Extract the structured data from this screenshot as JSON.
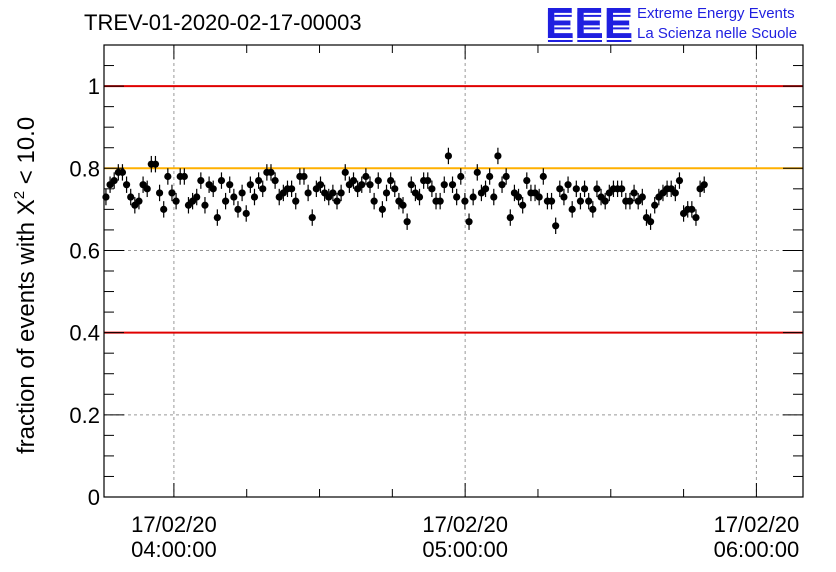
{
  "title": "TREV-01-2020-02-17-00003",
  "logo": {
    "mark": "EEE",
    "line1": "Extreme Energy Events",
    "line2": "La Scienza nelle Scuole",
    "color": "#1f1fe0"
  },
  "colors": {
    "reference_red": "#e00000",
    "reference_orange": "#ffb000",
    "points": "#000000",
    "grid": "#999999"
  },
  "chart_data": {
    "type": "scatter",
    "title": "TREV-01-2020-02-17-00003",
    "ylabel_prefix": "fraction of events with ",
    "ylabel_symbol": "X",
    "ylabel_superscript": "2",
    "ylabel_suffix": " < 10.0",
    "xlabel": "",
    "ylim": [
      0,
      1.1
    ],
    "xlim": [
      "2020-02-17 03:45:36",
      "2020-02-17 06:09:36"
    ],
    "y_ticks": [
      "0",
      "0.2",
      "0.4",
      "0.6",
      "0.8",
      "1"
    ],
    "y_tick_values": [
      0,
      0.2,
      0.4,
      0.6,
      0.8,
      1.0
    ],
    "x_ticks": [
      {
        "time": "2020-02-17 04:00:00",
        "date": "17/02/20",
        "clock": "04:00:00"
      },
      {
        "time": "2020-02-17 05:00:00",
        "date": "17/02/20",
        "clock": "05:00:00"
      },
      {
        "time": "2020-02-17 06:00:00",
        "date": "17/02/20",
        "clock": "06:00:00"
      }
    ],
    "reference_lines": [
      {
        "y": 1.0,
        "color": "#e00000"
      },
      {
        "y": 0.8,
        "color": "#ffb000"
      },
      {
        "y": 0.4,
        "color": "#e00000"
      }
    ],
    "grid": true,
    "x_start": "2020-02-17 03:46:00",
    "x_step_minutes": 0.85,
    "error": 0.02,
    "values": [
      0.73,
      0.76,
      0.77,
      0.79,
      0.79,
      0.76,
      0.73,
      0.71,
      0.72,
      0.76,
      0.75,
      0.81,
      0.81,
      0.74,
      0.7,
      0.78,
      0.74,
      0.72,
      0.78,
      0.78,
      0.71,
      0.72,
      0.73,
      0.77,
      0.71,
      0.76,
      0.75,
      0.68,
      0.77,
      0.72,
      0.76,
      0.73,
      0.7,
      0.74,
      0.69,
      0.76,
      0.73,
      0.77,
      0.75,
      0.79,
      0.79,
      0.77,
      0.73,
      0.74,
      0.75,
      0.75,
      0.72,
      0.78,
      0.78,
      0.74,
      0.68,
      0.75,
      0.76,
      0.74,
      0.73,
      0.74,
      0.72,
      0.74,
      0.79,
      0.76,
      0.77,
      0.75,
      0.76,
      0.78,
      0.76,
      0.72,
      0.77,
      0.7,
      0.74,
      0.77,
      0.75,
      0.72,
      0.71,
      0.67,
      0.76,
      0.74,
      0.73,
      0.77,
      0.77,
      0.75,
      0.72,
      0.72,
      0.76,
      0.83,
      0.76,
      0.73,
      0.78,
      0.72,
      0.67,
      0.73,
      0.79,
      0.74,
      0.75,
      0.78,
      0.73,
      0.83,
      0.76,
      0.78,
      0.68,
      0.74,
      0.73,
      0.71,
      0.77,
      0.74,
      0.74,
      0.73,
      0.78,
      0.72,
      0.72,
      0.66,
      0.75,
      0.73,
      0.76,
      0.7,
      0.75,
      0.72,
      0.75,
      0.72,
      0.7,
      0.75,
      0.73,
      0.72,
      0.74,
      0.75,
      0.75,
      0.75,
      0.72,
      0.72,
      0.74,
      0.72,
      0.73,
      0.68,
      0.67,
      0.71,
      0.73,
      0.74,
      0.75,
      0.75,
      0.74,
      0.77,
      0.69,
      0.7,
      0.7,
      0.68,
      0.75,
      0.76
    ]
  }
}
